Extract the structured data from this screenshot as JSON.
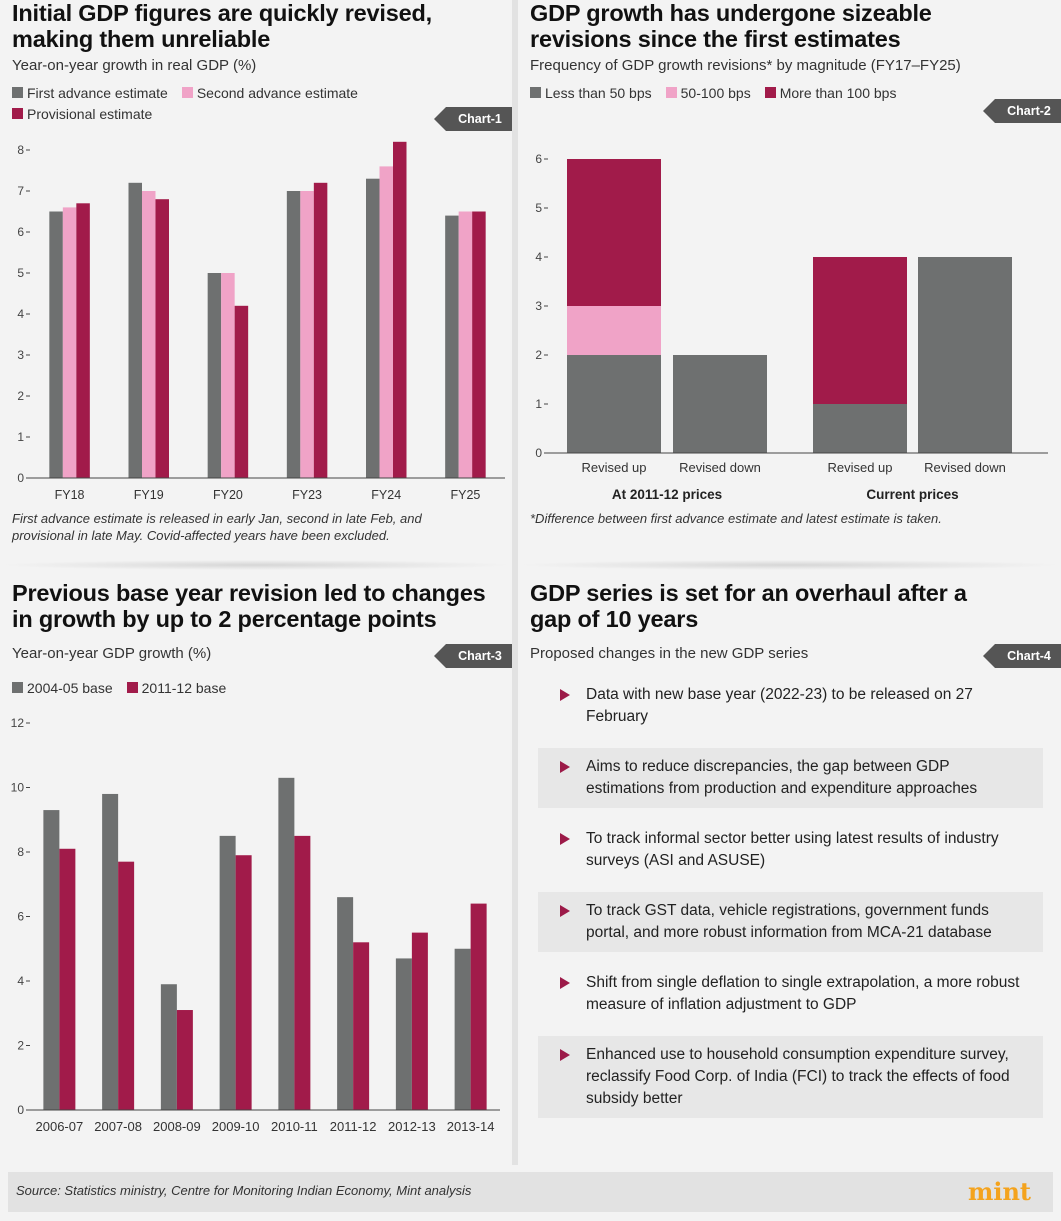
{
  "colors": {
    "gray": "#6e7070",
    "pink": "#f0a3c7",
    "crimson": "#a11b4a",
    "axis": "#444444"
  },
  "panel1": {
    "title_lines": [
      "Initial GDP figures are quickly revised,",
      "making them unreliable"
    ],
    "subtitle": "Year-on-year growth in real GDP (%)",
    "legend": [
      "First advance estimate",
      "Second advance estimate",
      "Provisional estimate"
    ],
    "badge": "Chart-1",
    "note_lines": [
      "First advance estimate is released in early Jan, second in late Feb, and",
      "provisional in late May. Covid-affected years have been excluded."
    ]
  },
  "panel2": {
    "title_lines": [
      "GDP growth has undergone sizeable",
      "revisions since the first estimates"
    ],
    "subtitle": "Frequency of GDP growth revisions* by magnitude (FY17–FY25)",
    "legend": [
      "Less than 50 bps",
      "50-100 bps",
      "More than 100 bps"
    ],
    "badge": "Chart-2",
    "note": "*Difference between first advance estimate and latest estimate is taken."
  },
  "panel3": {
    "title_lines": [
      "Previous base year revision led to changes",
      "in growth by up to 2 percentage points"
    ],
    "subtitle": "Year-on-year GDP growth (%)",
    "legend": [
      "2004-05 base",
      "2011-12 base"
    ],
    "badge": "Chart-3"
  },
  "panel4": {
    "title_lines": [
      "GDP series is set for an overhaul after a",
      "gap of 10 years"
    ],
    "subtitle": "Proposed changes in the new GDP series",
    "badge": "Chart-4",
    "items": [
      "Data with new base year (2022-23) to be released on 27 February",
      "Aims to reduce discrepancies, the gap between GDP estimations from production and expenditure approaches",
      "To track informal sector better using latest results of industry surveys (ASI and ASUSE)",
      "To track GST data, vehicle registrations, government funds portal, and more robust information from MCA-21 database",
      "Shift from single deflation to single extrapolation, a more robust measure of inflation adjustment to GDP",
      "Enhanced use to household consumption expenditure survey, reclassify Food Corp. of India (FCI) to track the effects of food subsidy better"
    ]
  },
  "footer": {
    "source": "Source: Statistics ministry, Centre for Monitoring Indian Economy, Mint analysis",
    "logo": "mint"
  },
  "chart_data": [
    {
      "id": "chart1",
      "type": "bar",
      "title": "Initial GDP figures are quickly revised, making them unreliable",
      "ylabel": "Year-on-year growth in real GDP (%)",
      "categories": [
        "FY18",
        "FY19",
        "FY20",
        "FY23",
        "FY24",
        "FY25"
      ],
      "series": [
        {
          "name": "First advance estimate",
          "values": [
            6.5,
            7.2,
            5.0,
            7.0,
            7.3,
            6.4
          ]
        },
        {
          "name": "Second advance estimate",
          "values": [
            6.6,
            7.0,
            5.0,
            7.0,
            7.6,
            6.5
          ]
        },
        {
          "name": "Provisional estimate",
          "values": [
            6.7,
            6.8,
            4.2,
            7.2,
            8.2,
            6.5
          ]
        }
      ],
      "ylim": [
        0,
        8
      ],
      "yticks": [
        0,
        1,
        2,
        3,
        4,
        5,
        6,
        7,
        8
      ],
      "grid": false
    },
    {
      "id": "chart2",
      "type": "bar",
      "stacked": true,
      "title": "GDP growth has undergone sizeable revisions since the first estimates",
      "groups": [
        "At 2011-12 prices",
        "Current prices"
      ],
      "categories": [
        "Revised up",
        "Revised down",
        "Revised up",
        "Revised down"
      ],
      "series": [
        {
          "name": "Less than 50 bps",
          "values": [
            2,
            2,
            1,
            4
          ]
        },
        {
          "name": "50-100 bps",
          "values": [
            1,
            0,
            0,
            0
          ]
        },
        {
          "name": "More than 100 bps",
          "values": [
            3,
            0,
            3,
            0
          ]
        }
      ],
      "ylim": [
        0,
        6
      ],
      "yticks": [
        0,
        1,
        2,
        3,
        4,
        5,
        6
      ],
      "grid": false
    },
    {
      "id": "chart3",
      "type": "bar",
      "title": "Previous base year revision led to changes in growth by up to 2 percentage points",
      "ylabel": "Year-on-year GDP growth (%)",
      "categories": [
        "2006-07",
        "2007-08",
        "2008-09",
        "2009-10",
        "2010-11",
        "2011-12",
        "2012-13",
        "2013-14"
      ],
      "series": [
        {
          "name": "2004-05 base",
          "values": [
            9.3,
            9.8,
            3.9,
            8.5,
            10.3,
            6.6,
            4.7,
            5.0
          ]
        },
        {
          "name": "2011-12 base",
          "values": [
            8.1,
            7.7,
            3.1,
            7.9,
            8.5,
            5.2,
            5.5,
            6.4
          ]
        }
      ],
      "ylim": [
        0,
        12
      ],
      "yticks": [
        0,
        2,
        4,
        6,
        8,
        10,
        12
      ],
      "grid": false
    }
  ]
}
